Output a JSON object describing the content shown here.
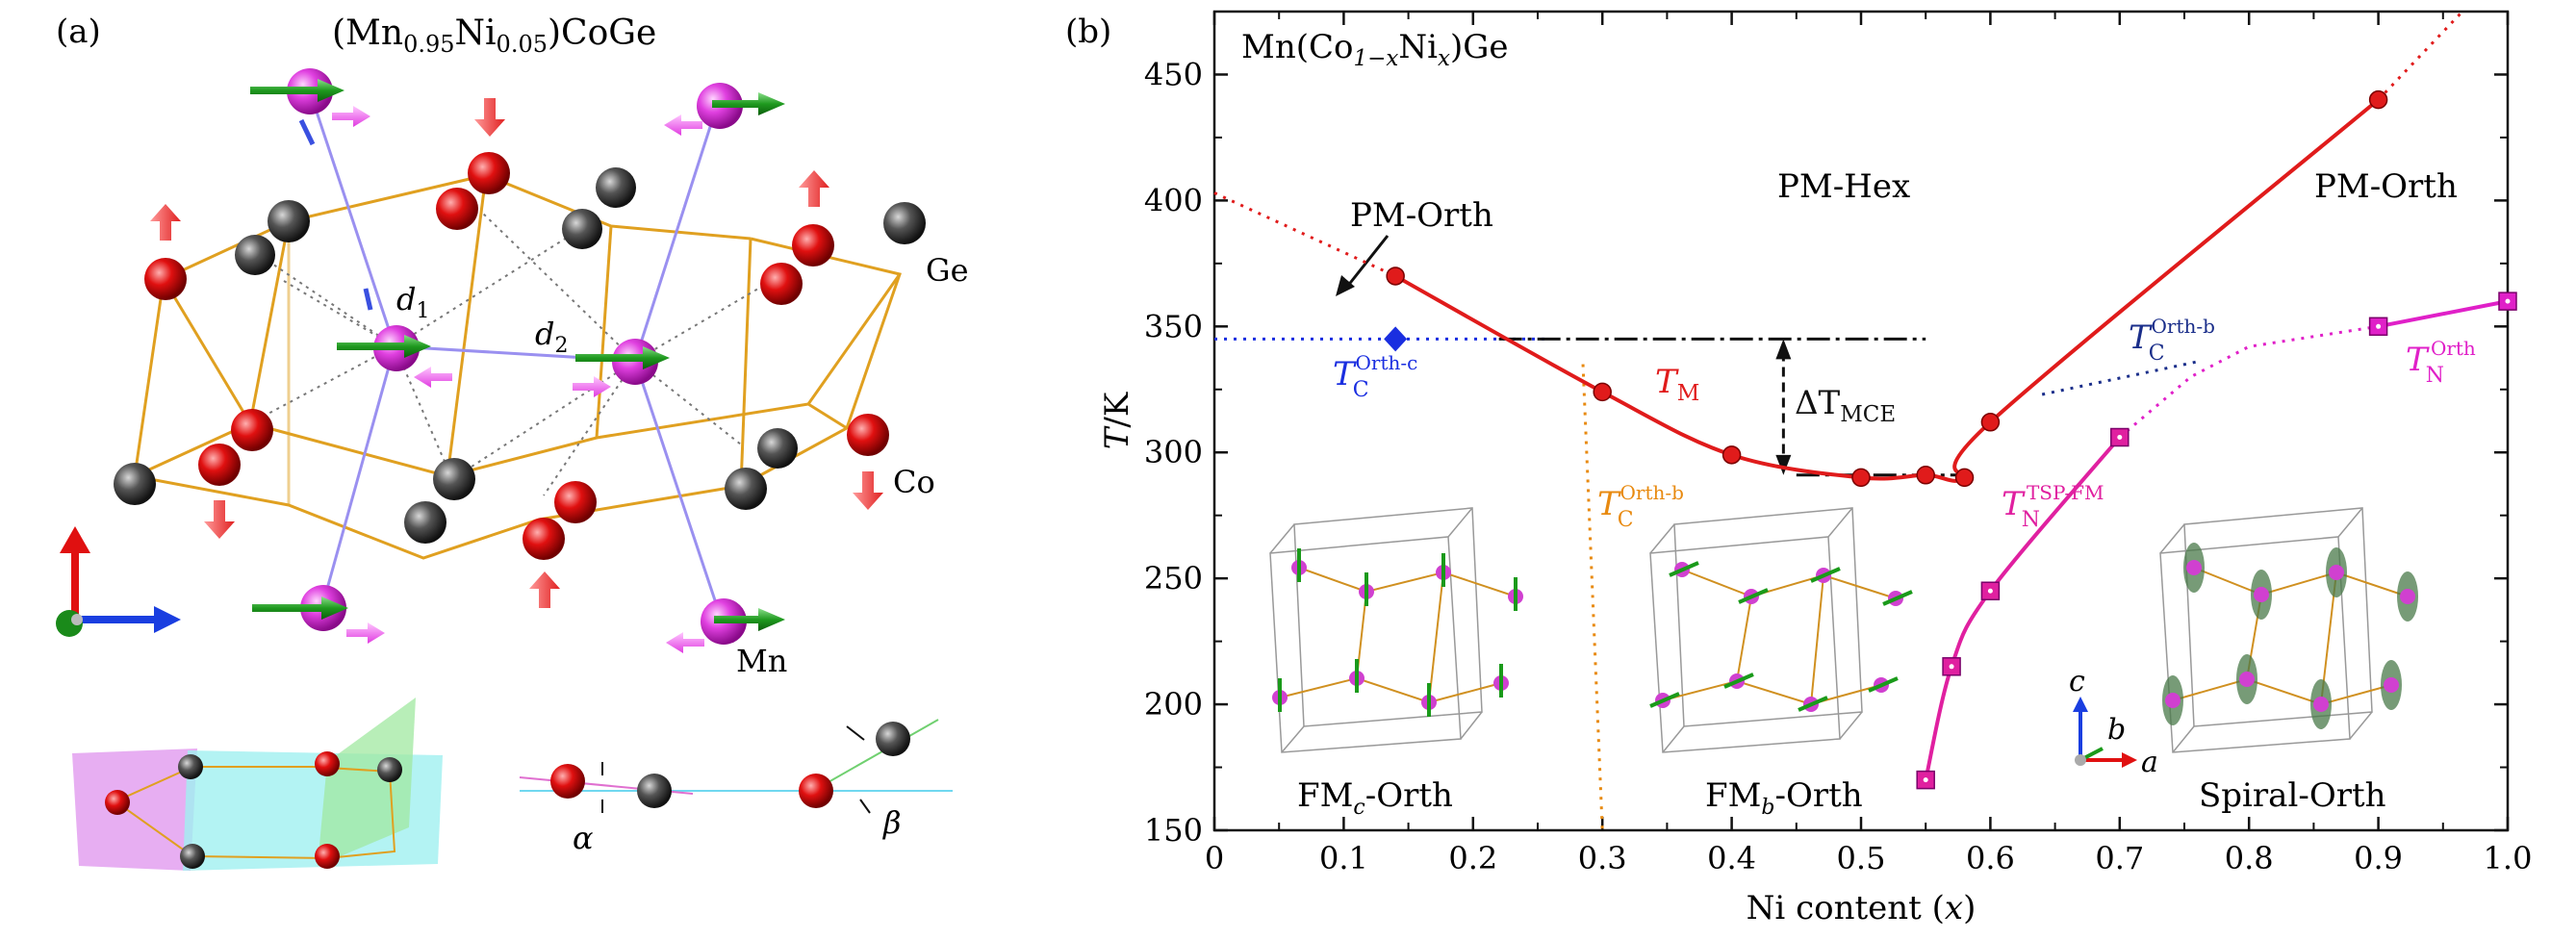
{
  "figure": {
    "panel_a": {
      "label": "(a)",
      "title_prefix": "(Mn",
      "title_sub1": "0.95",
      "title_mid": "Ni",
      "title_sub2": "0.05",
      "title_suffix": ")CoGe",
      "atom_labels": {
        "ge": "Ge",
        "co": "Co",
        "mn": "Mn"
      },
      "distance_labels": {
        "d1": "d",
        "d1_sub": "1",
        "d2": "d",
        "d2_sub": "2"
      },
      "angle_labels": {
        "alpha": "α",
        "beta": "β"
      }
    },
    "panel_b": {
      "label": "(b)",
      "formula": "Mn(Co",
      "formula_sub": "1−x",
      "formula_mid": "Ni",
      "formula_sub2": "x",
      "formula_end": ")Ge",
      "phase_labels": {
        "pm_orth_left": "PM-Orth",
        "pm_hex": "PM-Hex",
        "pm_orth_right": "PM-Orth"
      },
      "curve_labels": {
        "tm": "T",
        "tm_sub": "M",
        "dt": "ΔT",
        "dt_sub": "MCE",
        "tc_c": "T",
        "tc_c_sub": "C",
        "tc_c_sup": "Orth-c",
        "tc_b": "T",
        "tc_b_sub": "C",
        "tc_b_sup": "Orth-b",
        "tc_b2": "T",
        "tc_b2_sub": "C",
        "tc_b2_sup": "Orth-b",
        "tn": "T",
        "tn_sub": "N",
        "tn_sup": "Orth",
        "tn_tsp": "T",
        "tn_tsp_sub": "N",
        "tn_tsp_sup": "TSP-FM"
      },
      "structure_labels": {
        "fmc_a": "FM",
        "fmc_sub": "c",
        "fmc_b": "-Orth",
        "fmb_a": "FM",
        "fmb_sub": "b",
        "fmb_b": "-Orth",
        "spiral": "Spiral-Orth"
      },
      "axes_triad": {
        "a": "a",
        "b": "b",
        "c": "c"
      }
    }
  },
  "chart_data": {
    "type": "line",
    "title": "Mn(Co1−xNix)Ge",
    "xlabel": "Ni content (x)",
    "ylabel": "T/K",
    "xlim": [
      0,
      1.0
    ],
    "ylim": [
      150,
      475
    ],
    "xticks": [
      "0",
      "0.1",
      "0.2",
      "0.3",
      "0.4",
      "0.5",
      "0.6",
      "0.7",
      "0.8",
      "0.9",
      "1.0"
    ],
    "yticks": [
      "150",
      "200",
      "250",
      "300",
      "350",
      "400",
      "450"
    ],
    "series": [
      {
        "name": "T_M",
        "color": "#e01b1b",
        "marker": "circle",
        "x": [
          0.14,
          0.3,
          0.4,
          0.5,
          0.55,
          0.58,
          0.6,
          0.9
        ],
        "y": [
          370,
          324,
          299,
          290,
          291,
          290,
          312,
          440
        ]
      },
      {
        "name": "T_N^Orth",
        "color": "#e020c8",
        "marker": "square",
        "x": [
          0.9,
          1.0
        ],
        "y": [
          350,
          360
        ]
      },
      {
        "name": "T_N^TSP-FM",
        "color": "#e020a0",
        "marker": "square",
        "x": [
          0.55,
          0.57,
          0.6,
          0.7
        ],
        "y": [
          170,
          215,
          245,
          306
        ]
      },
      {
        "name": "T_C^Orth-c",
        "color": "#1a2ee0",
        "marker": "diamond",
        "x": [
          0.14
        ],
        "y": [
          345
        ]
      }
    ],
    "annotations": [
      "PM-Orth",
      "PM-Hex",
      "PM-Orth",
      "ΔT_MCE",
      "FMc-Orth",
      "FMb-Orth",
      "Spiral-Orth"
    ]
  }
}
